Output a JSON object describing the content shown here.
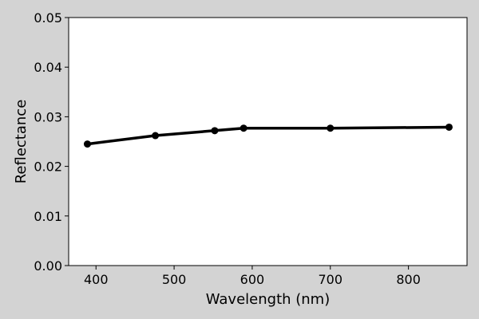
{
  "chart_data": {
    "type": "line",
    "title": "",
    "xlabel": "Wavelength (nm)",
    "ylabel": "Reflectance",
    "xlim": [
      365,
      875
    ],
    "ylim": [
      0,
      0.05
    ],
    "x_ticks": [
      400,
      500,
      600,
      700,
      800
    ],
    "y_ticks": [
      0.0,
      0.01,
      0.02,
      0.03,
      0.04,
      0.05
    ],
    "x_tick_labels": [
      "400",
      "500",
      "600",
      "700",
      "800"
    ],
    "y_tick_labels": [
      "0.00",
      "0.01",
      "0.02",
      "0.03",
      "0.04",
      "0.05"
    ],
    "grid": false,
    "series": [
      {
        "color": "#000000",
        "marker": "circle",
        "x": [
          389,
          476,
          552,
          589,
          700,
          852
        ],
        "y": [
          0.0245,
          0.0262,
          0.0272,
          0.0277,
          0.0277,
          0.0279
        ]
      }
    ]
  },
  "colors": {
    "figure_background": "#d3d3d3",
    "plot_background": "#ffffff",
    "axis": "#000000"
  }
}
